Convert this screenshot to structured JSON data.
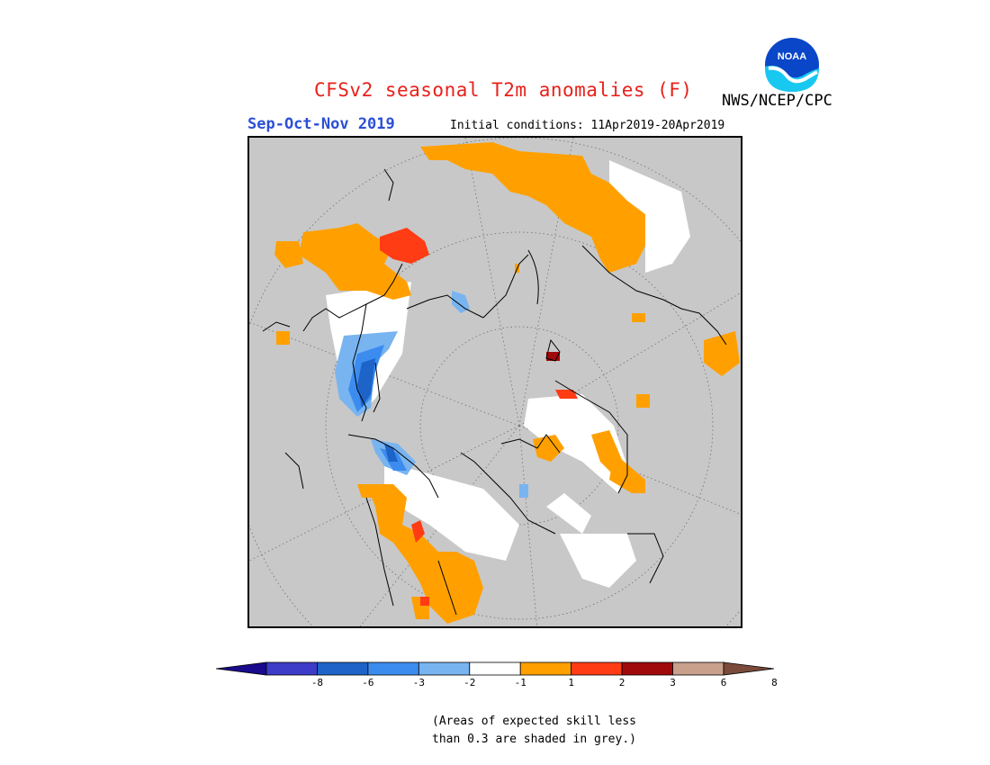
{
  "header": {
    "title": "CFSv2 seasonal T2m anomalies (F)",
    "season": "Sep-Oct-Nov 2019",
    "initial_conditions": "Initial conditions: 11Apr2019-20Apr2019",
    "agency": "NWS/NCEP/CPC",
    "logo_text": "NOAA"
  },
  "legend": {
    "tick_labels": [
      "-8",
      "-6",
      "-3",
      "-2",
      "-1",
      "1",
      "2",
      "3",
      "6",
      "8"
    ],
    "colors": [
      "#1a0a8c",
      "#3c3cc8",
      "#1e64c8",
      "#3c8cf0",
      "#78b4f0",
      "#ffffff",
      "#ffa000",
      "#ff3c14",
      "#a00a0a",
      "#c8a08c",
      "#7a4a3a"
    ]
  },
  "note": {
    "line1": "(Areas of expected skill less",
    "line2": "than 0.3 are shaded in grey.)"
  }
}
